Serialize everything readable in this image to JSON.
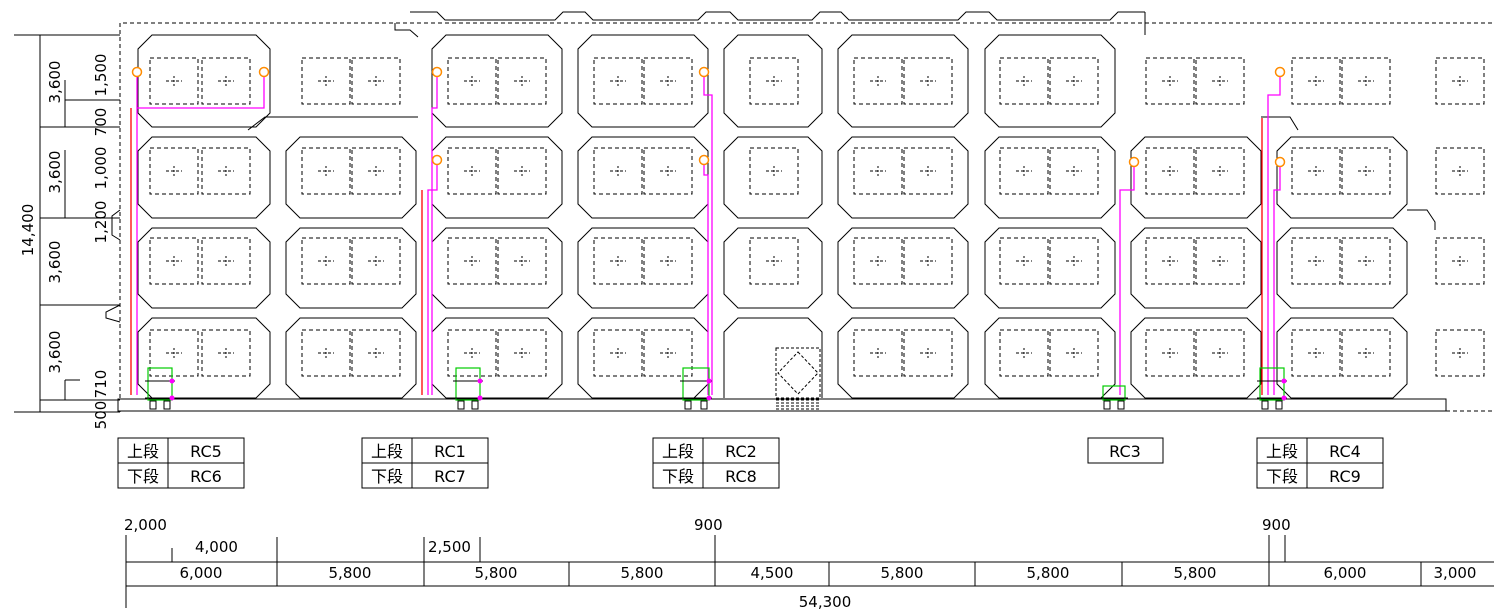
{
  "vertical_dims": {
    "total": "14,400",
    "top": "3,600",
    "upper_mid": "3,600",
    "lower_mid": "3,600",
    "bottom": "3,600",
    "offset_1500": "1,500",
    "offset_700": "700",
    "offset_1000": "1,000",
    "offset_1200": "1,200",
    "offset_710": "710",
    "offset_500": "500"
  },
  "pipe_tables": [
    {
      "upper_label": "上段",
      "upper_code": "RC5",
      "lower_label": "下段",
      "lower_code": "RC6"
    },
    {
      "upper_label": "上段",
      "upper_code": "RC1",
      "lower_label": "下段",
      "lower_code": "RC7"
    },
    {
      "upper_label": "上段",
      "upper_code": "RC2",
      "lower_label": "下段",
      "lower_code": "RC8"
    },
    {
      "single_code": "RC3"
    },
    {
      "upper_label": "上段",
      "upper_code": "RC4",
      "lower_label": "下段",
      "lower_code": "RC9"
    }
  ],
  "horizontal_dims": {
    "d2000": "2,000",
    "d4000": "4,000",
    "d2500": "2,500",
    "d900a": "900",
    "d900b": "900",
    "row": [
      "6,000",
      "5,800",
      "5,800",
      "5,800",
      "4,500",
      "5,800",
      "5,800",
      "5,800",
      "6,000",
      "3,000"
    ],
    "total": "54,300"
  },
  "colors": {
    "outline": "#000000",
    "pipe_magenta": "#ff00ff",
    "pipe_red": "#ff0000",
    "valve_orange": "#ff8c00",
    "box_green": "#00cc00"
  }
}
